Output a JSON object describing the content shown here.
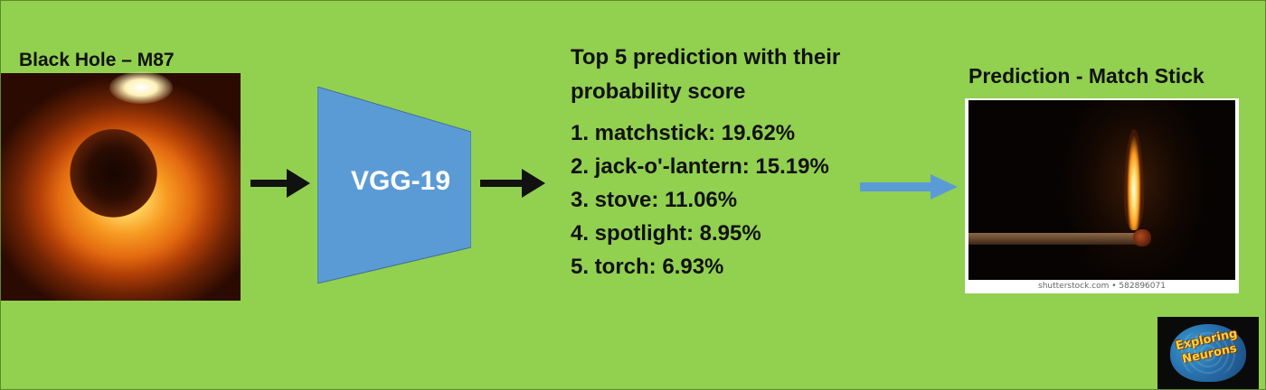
{
  "input": {
    "title": "Black Hole – M87"
  },
  "model": {
    "name": "VGG-19"
  },
  "predictions": {
    "heading_line1": "Top 5 prediction with their",
    "heading_line2": "probability score",
    "items": [
      {
        "text": "1. matchstick: 19.62%"
      },
      {
        "text": "2. jack-o'-lantern: 15.19%"
      },
      {
        "text": "3. stove: 11.06%"
      },
      {
        "text": "4. spotlight: 8.95%"
      },
      {
        "text": "5. torch: 6.93%"
      }
    ]
  },
  "output": {
    "title": "Prediction - Match Stick",
    "watermark": "shutterstock.com • 582896071"
  },
  "logo": {
    "line1": "Exploring",
    "line2": "Neurons"
  },
  "colors": {
    "background": "#92d050",
    "model_block": "#5b9bd5",
    "arrow_dark": "#111111",
    "arrow_blue": "#5b9bd5"
  }
}
